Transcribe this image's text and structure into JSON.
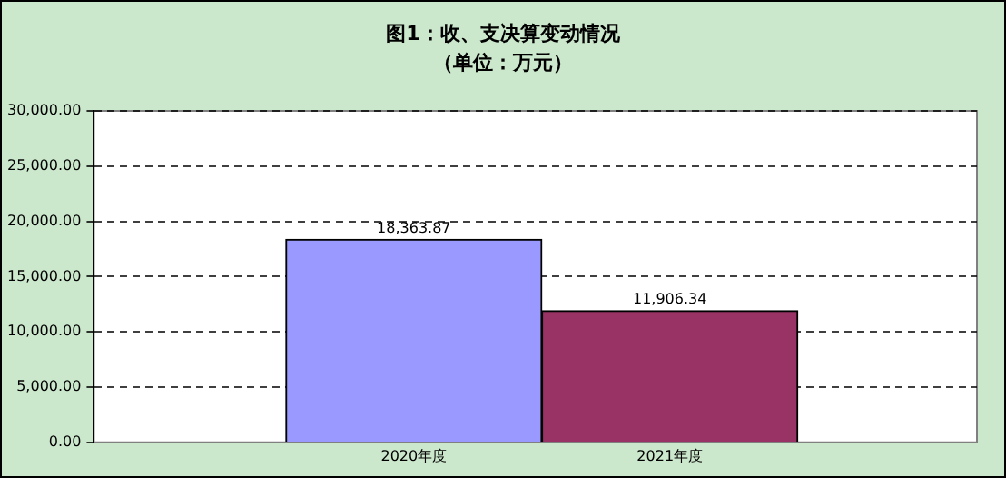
{
  "chart_data": {
    "type": "bar",
    "title": "图1：收、支决算变动情况",
    "subtitle": "（单位：万元）",
    "categories": [
      "2020年度",
      "2021年度"
    ],
    "values": [
      18363.87,
      11906.34
    ],
    "colors": [
      "#9999ff",
      "#993366"
    ],
    "value_labels": [
      "18,363.87",
      "11,906.34"
    ],
    "ylim": [
      0,
      30000
    ],
    "yticks": [
      {
        "value": 0,
        "label": "0.00"
      },
      {
        "value": 5000,
        "label": "5,000.00"
      },
      {
        "value": 10000,
        "label": "10,000.00"
      },
      {
        "value": 15000,
        "label": "15,000.00"
      },
      {
        "value": 20000,
        "label": "20,000.00"
      },
      {
        "value": 25000,
        "label": "25,000.00"
      },
      {
        "value": 30000,
        "label": "30,000.00"
      }
    ],
    "grid": "y"
  }
}
